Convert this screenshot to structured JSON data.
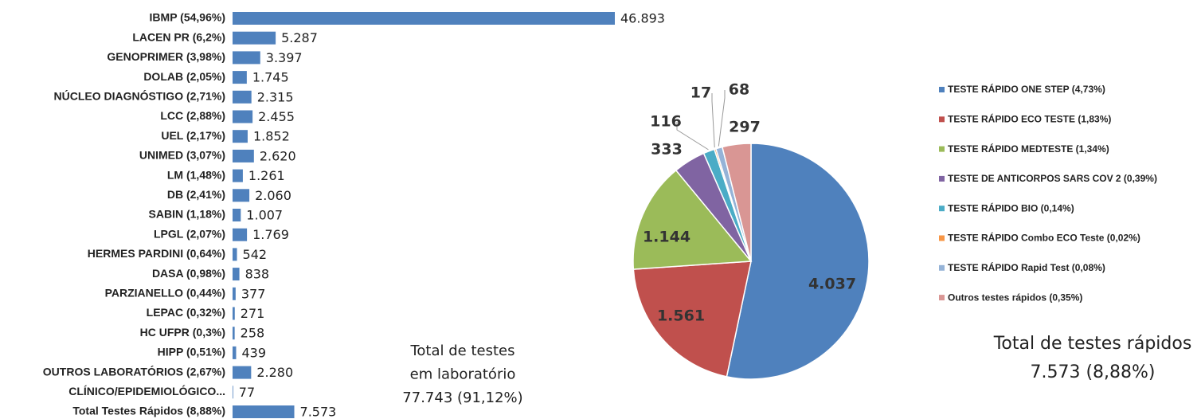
{
  "chart_data": [
    {
      "type": "bar",
      "orientation": "horizontal",
      "color": "#4f81bd",
      "categories": [
        "IBMP (54,96%)",
        "LACEN PR (6,2%)",
        "GENOPRIMER (3,98%)",
        "DOLAB (2,05%)",
        "NÚCLEO DIAGNÓSTIGO (2,71%)",
        "LCC (2,88%)",
        "UEL (2,17%)",
        "UNIMED (3,07%)",
        "LM (1,48%)",
        "DB (2,41%)",
        "SABIN (1,18%)",
        "LPGL (2,07%)",
        "HERMES PARDINI (0,64%)",
        "DASA (0,98%)",
        "PARZIANELLO (0,44%)",
        "LEPAC (0,32%)",
        "HC UFPR (0,3%)",
        "HIPP (0,51%)",
        "OUTROS LABORATÓRIOS (2,67%)",
        "CLÍNICO/EPIDEMIOLÓGICO...",
        "Total Testes Rápidos (8,88%)"
      ],
      "values": [
        46893,
        5287,
        3397,
        1745,
        2315,
        2455,
        1852,
        2620,
        1261,
        2060,
        1007,
        1769,
        542,
        838,
        377,
        271,
        258,
        439,
        2280,
        77,
        7573
      ],
      "value_labels": [
        "46.893",
        "5.287",
        "3.397",
        "1.745",
        "2.315",
        "2.455",
        "1.852",
        "2.620",
        "1.261",
        "2.060",
        "1.007",
        "1.769",
        "542",
        "838",
        "377",
        "271",
        "258",
        "439",
        "2.280",
        "77",
        "7.573"
      ],
      "annotation": [
        "Total de testes",
        "em laboratório",
        "77.743 (91,12%)"
      ]
    },
    {
      "type": "pie",
      "series": [
        {
          "name": "TESTE RÁPIDO ONE STEP (4,73%)",
          "color": "#4f81bd"
        },
        {
          "name": "TESTE RÁPIDO ECO TESTE (1,83%)",
          "color": "#c0504d"
        },
        {
          "name": "TESTE RÁPIDO MEDTESTE (1,34%)",
          "color": "#9bbb59"
        },
        {
          "name": "TESTE DE ANTICORPOS SARS COV 2 (0,39%)",
          "color": "#8064a2"
        },
        {
          "name": "TESTE RÁPIDO BIO (0,14%)",
          "color": "#4bacc6"
        },
        {
          "name": "TESTE RÁPIDO Combo ECO Teste (0,02%)",
          "color": "#f79646"
        },
        {
          "name": "TESTE RÁPIDO Rapid Test (0,08%)",
          "color": "#95b3d7"
        },
        {
          "name": "Outros testes rápidos (0,35%)",
          "color": "#d99694"
        }
      ],
      "values": [
        4037,
        1561,
        1144,
        333,
        116,
        17,
        68,
        297
      ],
      "value_labels": [
        "4.037",
        "1.561",
        "1.144",
        "333",
        "116",
        "17",
        "68",
        "297"
      ],
      "annotation": [
        "Total de testes rápidos",
        "7.573 (8,88%)"
      ]
    }
  ]
}
